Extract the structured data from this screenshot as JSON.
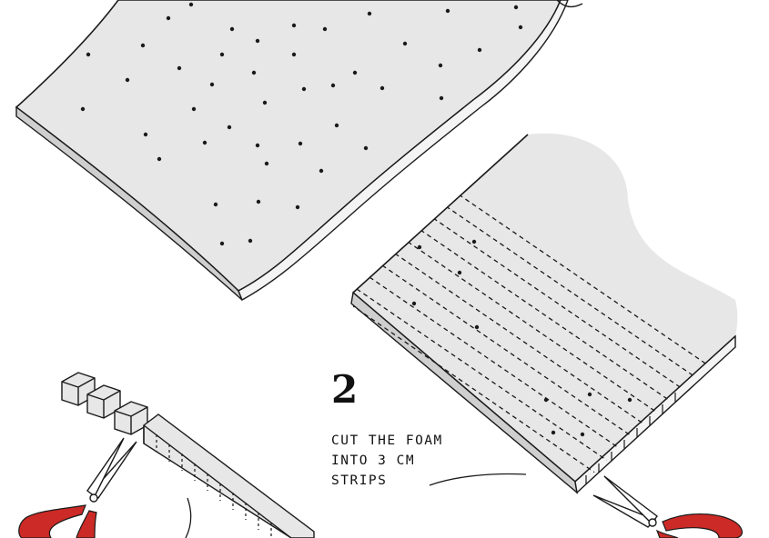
{
  "step": {
    "number": "2",
    "instruction_lines": [
      "CUT THE FOAM",
      "INTO 3 CM",
      "STRIPS"
    ]
  },
  "colors": {
    "foam": "#e7e7e7",
    "ink": "#1a1a1a",
    "scissor_handle": "#cc2a26"
  },
  "icons": {
    "scissors_left": "scissors-icon",
    "scissors_right": "scissors-icon",
    "foam_cubes": "foam-cube-icon"
  }
}
